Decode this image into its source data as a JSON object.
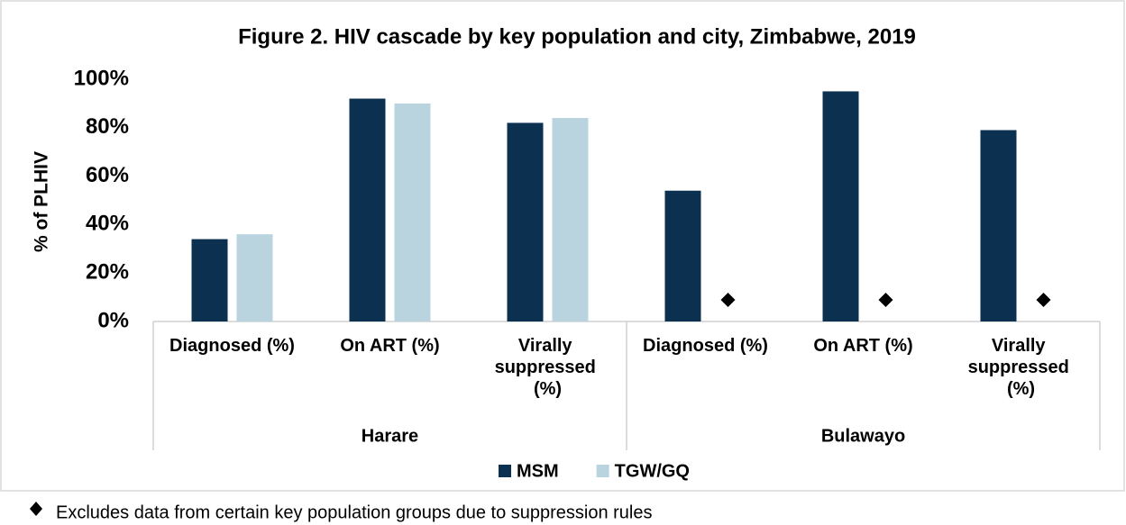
{
  "chart_data": {
    "type": "bar",
    "title": "Figure 2. HIV cascade by key population and city, Zimbabwe, 2019",
    "y_label": "% of PLHIV",
    "categories": [
      "Diagnosed (%)",
      "On ART (%)",
      "Virally suppressed (%)",
      "Diagnosed (%)",
      "On ART (%)",
      "Virally suppressed (%)"
    ],
    "groups": [
      {
        "name": "Harare",
        "size": 3
      },
      {
        "name": "Bulawayo",
        "size": 3
      }
    ],
    "series": [
      {
        "name": "MSM",
        "color": "#0b3050",
        "values": [
          34,
          92,
          82,
          54,
          95,
          79
        ]
      },
      {
        "name": "TGW/GQ",
        "color": "#b9d3df",
        "values": [
          36,
          90,
          84,
          null,
          null,
          null
        ]
      }
    ],
    "ylim": [
      0,
      100
    ],
    "yticks": [
      {
        "value": 0,
        "label": "0%"
      },
      {
        "value": 20,
        "label": "20%"
      },
      {
        "value": 40,
        "label": "40%"
      },
      {
        "value": 60,
        "label": "60%"
      },
      {
        "value": 80,
        "label": "80%"
      },
      {
        "value": 100,
        "label": "100%"
      }
    ],
    "grid": false,
    "legend": "bottom",
    "footnote": "Excludes data from certain key population groups due to suppression rules"
  }
}
